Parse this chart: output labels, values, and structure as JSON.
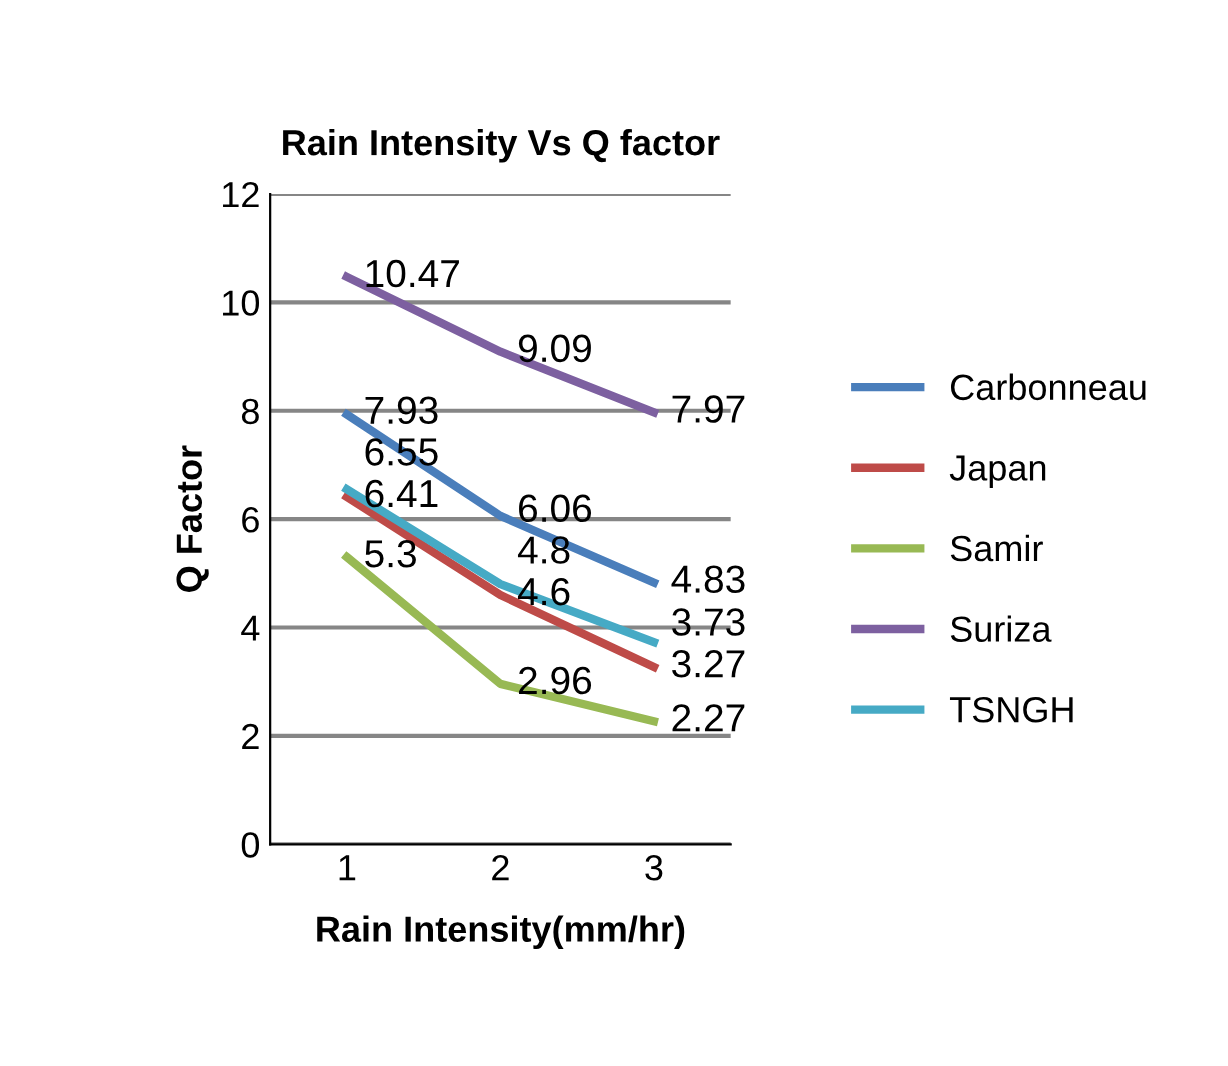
{
  "chart_data": {
    "type": "line",
    "title": "Rain Intensity Vs Q factor",
    "xlabel": "Rain Intensity(mm/hr)",
    "ylabel": "Q Factor",
    "categories": [
      "1",
      "2",
      "3"
    ],
    "series": [
      {
        "name": "Carbonneau",
        "color": "#4a7ebb",
        "values": [
          7.93,
          6.06,
          4.83
        ]
      },
      {
        "name": "Japan",
        "color": "#be4b48",
        "values": [
          6.41,
          4.6,
          3.27
        ]
      },
      {
        "name": "Samir",
        "color": "#98b954",
        "values": [
          5.3,
          2.96,
          2.27
        ]
      },
      {
        "name": "Suriza",
        "color": "#7d60a0",
        "values": [
          10.47,
          9.09,
          7.97
        ]
      },
      {
        "name": "TSNGH",
        "color": "#46aac5",
        "values": [
          6.55,
          4.8,
          3.73
        ]
      }
    ],
    "ylim": [
      0,
      12
    ],
    "yticks": [
      0,
      2,
      4,
      6,
      8,
      10,
      12
    ],
    "grid": "y",
    "legend": "right",
    "data_labels": true,
    "marker": "none",
    "line_style": "solid"
  }
}
